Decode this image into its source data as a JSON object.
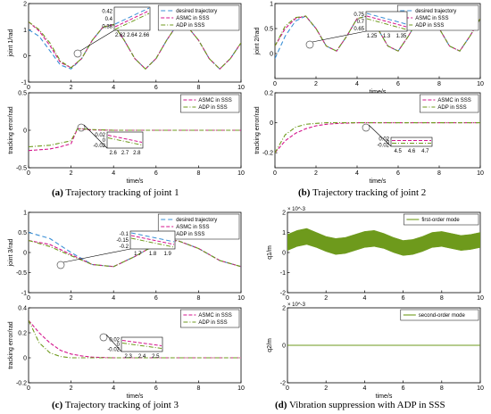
{
  "colors": {
    "desired": "#3a8fd6",
    "asmc": "#d4148c",
    "adp": "#6e9a1c",
    "axis": "#000000",
    "circle": "#555555"
  },
  "captions": [
    {
      "label": "(a)",
      "text": " Trajectory tracking of joint 1"
    },
    {
      "label": "(b)",
      "text": " Trajectory tracking of joint 2"
    },
    {
      "label": "(c)",
      "text": " Trajectory tracking of joint 3"
    },
    {
      "label": "(d)",
      "text": " Vibration suppression with ADP in SSS"
    }
  ],
  "chart_data": [
    {
      "type": "line",
      "panel": "a-top",
      "ylabel": "joint 1/rad",
      "xlim": [
        0,
        10
      ],
      "ylim": [
        -1,
        2
      ],
      "xticks": [
        "0",
        "2",
        "4",
        "6",
        "8",
        "10"
      ],
      "yticks": [
        "-1",
        "0",
        "1",
        "2"
      ],
      "legend": [
        "desired trajectory",
        "ASMC in SSS",
        "ADP in SSS"
      ],
      "legend_position": "top-right",
      "series": [
        {
          "name": "desired trajectory",
          "x": [
            0,
            0.5,
            1,
            1.5,
            2,
            2.5,
            3,
            3.5,
            4,
            4.5,
            5,
            5.5,
            6,
            6.5,
            7,
            7.5,
            8,
            8.5,
            9,
            9.5,
            10
          ],
          "y": [
            1,
            0.75,
            0.2,
            -0.35,
            -0.5,
            -0.1,
            0.6,
            1.1,
            1.2,
            0.6,
            -0.1,
            -0.5,
            -0.1,
            0.6,
            1.2,
            1.1,
            0.6,
            -0.1,
            -0.5,
            -0.1,
            0.5
          ]
        },
        {
          "name": "ASMC in SSS",
          "x": [
            0,
            0.5,
            1,
            1.5,
            2,
            2.5,
            3,
            3.5,
            4,
            4.5,
            5,
            5.5,
            6,
            6.5,
            7,
            7.5,
            8,
            8.5,
            9,
            9.5,
            10
          ],
          "y": [
            1.3,
            0.95,
            0.4,
            -0.25,
            -0.45,
            -0.1,
            0.6,
            1.1,
            1.2,
            0.6,
            -0.1,
            -0.5,
            -0.1,
            0.6,
            1.2,
            1.1,
            0.6,
            -0.1,
            -0.5,
            -0.1,
            0.5
          ]
        },
        {
          "name": "ADP in SSS",
          "x": [
            0,
            0.5,
            1,
            1.5,
            2,
            2.5,
            3,
            3.5,
            4,
            4.5,
            5,
            5.5,
            6,
            6.5,
            7,
            7.5,
            8,
            8.5,
            9,
            9.5,
            10
          ],
          "y": [
            1.3,
            1.0,
            0.5,
            -0.2,
            -0.45,
            -0.1,
            0.6,
            1.1,
            1.2,
            0.6,
            -0.1,
            -0.5,
            -0.1,
            0.6,
            1.2,
            1.1,
            0.6,
            -0.1,
            -0.5,
            -0.1,
            0.5
          ]
        }
      ],
      "inset": {
        "xlim": [
          2.61,
          2.67
        ],
        "ylim": [
          0.37,
          0.43
        ],
        "xticks": [
          "2.62",
          "2.64",
          "2.66"
        ],
        "yticks": [
          "0.42",
          "0.4",
          "0.38"
        ]
      }
    },
    {
      "type": "line",
      "panel": "a-bottom",
      "ylabel": "tracking error/rad",
      "xlabel": "time/s",
      "xlim": [
        0,
        10
      ],
      "ylim": [
        -0.5,
        0.5
      ],
      "xticks": [
        "0",
        "2",
        "4",
        "6",
        "8",
        "10"
      ],
      "yticks": [
        "-0.5",
        "0",
        "0.5"
      ],
      "legend": [
        "ASMC in SSS",
        "ADP in SSS"
      ],
      "legend_position": "top-right",
      "series": [
        {
          "name": "ASMC in SSS",
          "x": [
            0,
            1,
            1.5,
            2,
            2.3,
            2.5,
            2.7,
            3,
            4,
            5,
            6,
            7,
            8,
            9,
            10
          ],
          "y": [
            -0.27,
            -0.25,
            -0.22,
            -0.18,
            0.02,
            0.02,
            0.01,
            0.005,
            0,
            0,
            0,
            0,
            0,
            0,
            0
          ]
        },
        {
          "name": "ADP in SSS",
          "x": [
            0,
            1,
            1.5,
            2,
            2.3,
            2.5,
            2.7,
            3,
            4,
            5,
            6,
            7,
            8,
            9,
            10
          ],
          "y": [
            -0.22,
            -0.2,
            -0.17,
            -0.14,
            0.02,
            0.02,
            0.015,
            0.01,
            0,
            0,
            0,
            0,
            0,
            0,
            0
          ]
        }
      ],
      "inset": {
        "xlim": [
          2.55,
          2.85
        ],
        "ylim": [
          -0.03,
          0.03
        ],
        "xticks": [
          "2.6",
          "2.7",
          "2.8"
        ],
        "yticks": [
          "0.02",
          "0",
          "-0.02"
        ]
      }
    },
    {
      "type": "line",
      "panel": "b-top",
      "ylabel": "joint 2/rad",
      "xlabel": "time/s",
      "xlim": [
        0,
        10
      ],
      "ylim": [
        -0.5,
        1
      ],
      "xticks": [
        "0",
        "2",
        "4",
        "6",
        "8",
        "10"
      ],
      "yticks": [
        "0",
        "0.5",
        "1"
      ],
      "legend": [
        "desired trajectory",
        "ASMC in SSS",
        "ADP in SSS"
      ],
      "legend_position": "top-right",
      "series": [
        {
          "name": "desired trajectory",
          "x": [
            0,
            0.5,
            1,
            1.5,
            2,
            2.5,
            3,
            3.5,
            4,
            4.5,
            5,
            5.5,
            6,
            6.5,
            7,
            7.5,
            8,
            8.5,
            9,
            9.5,
            10
          ],
          "y": [
            -0.1,
            0.35,
            0.65,
            0.75,
            0.5,
            0.15,
            0.05,
            0.35,
            0.7,
            0.75,
            0.5,
            0.15,
            0.05,
            0.35,
            0.7,
            0.75,
            0.5,
            0.15,
            0.05,
            0.35,
            0.7
          ]
        },
        {
          "name": "ASMC in SSS",
          "x": [
            0,
            0.5,
            1,
            1.5,
            2,
            2.5,
            3,
            3.5,
            4,
            4.5,
            5,
            5.5,
            6,
            6.5,
            7,
            7.5,
            8,
            8.5,
            9,
            9.5,
            10
          ],
          "y": [
            0.15,
            0.5,
            0.7,
            0.75,
            0.5,
            0.15,
            0.05,
            0.35,
            0.7,
            0.75,
            0.5,
            0.15,
            0.05,
            0.35,
            0.7,
            0.75,
            0.5,
            0.15,
            0.05,
            0.35,
            0.7
          ]
        },
        {
          "name": "ADP in SSS",
          "x": [
            0,
            0.5,
            1,
            1.5,
            2,
            2.5,
            3,
            3.5,
            4,
            4.5,
            5,
            5.5,
            6,
            6.5,
            7,
            7.5,
            8,
            8.5,
            9,
            9.5,
            10
          ],
          "y": [
            0.15,
            0.55,
            0.72,
            0.75,
            0.5,
            0.15,
            0.05,
            0.35,
            0.7,
            0.75,
            0.5,
            0.15,
            0.05,
            0.35,
            0.7,
            0.75,
            0.5,
            0.15,
            0.05,
            0.35,
            0.7
          ]
        }
      ],
      "inset": {
        "xlim": [
          1.23,
          1.37
        ],
        "ylim": [
          0.63,
          0.77
        ],
        "xticks": [
          "1.25",
          "1.3",
          "1.35"
        ],
        "yticks": [
          "0.75",
          "0.7",
          "0.65"
        ]
      }
    },
    {
      "type": "line",
      "panel": "b-bottom",
      "ylabel": "tracking error/rad",
      "xlabel": "time/s",
      "xlim": [
        0,
        10
      ],
      "ylim": [
        -0.3,
        0.2
      ],
      "xticks": [
        "0",
        "2",
        "4",
        "6",
        "8",
        "10"
      ],
      "yticks": [
        "-0.2",
        "0",
        "0.2"
      ],
      "legend": [
        "ASMC in SSS",
        "ADP in SSS"
      ],
      "legend_position": "top-right",
      "series": [
        {
          "name": "ASMC in SSS",
          "x": [
            0,
            0.5,
            1,
            1.5,
            2,
            2.5,
            3,
            4,
            5,
            6,
            7,
            8,
            9,
            10
          ],
          "y": [
            -0.2,
            -0.12,
            -0.07,
            -0.04,
            -0.02,
            -0.01,
            -0.005,
            0,
            0,
            0,
            0,
            0,
            0,
            0
          ]
        },
        {
          "name": "ADP in SSS",
          "x": [
            0,
            0.5,
            1,
            1.5,
            2,
            2.5,
            3,
            4,
            5,
            6,
            7,
            8,
            9,
            10
          ],
          "y": [
            -0.2,
            -0.08,
            -0.03,
            -0.01,
            -0.004,
            0,
            0,
            0,
            0,
            0,
            0,
            0,
            0,
            0
          ]
        }
      ],
      "inset": {
        "xlim": [
          4.45,
          4.75
        ],
        "ylim": [
          -0.03,
          0.03
        ],
        "xticks": [
          "4.5",
          "4.6",
          "4.7"
        ],
        "yticks": [
          "0.02",
          "0",
          "-0.02"
        ]
      }
    },
    {
      "type": "line",
      "panel": "c-top",
      "ylabel": "joint 3/rad",
      "xlim": [
        0,
        10
      ],
      "ylim": [
        -1,
        1
      ],
      "xticks": [
        "0",
        "2",
        "4",
        "6",
        "8",
        "10"
      ],
      "yticks": [
        "-1",
        "-0.5",
        "0",
        "0.5",
        "1"
      ],
      "legend": [
        "desired trajectory",
        "ASMC in SSS",
        "ADP in SSS"
      ],
      "legend_position": "top-right",
      "series": [
        {
          "name": "desired trajectory",
          "x": [
            0,
            1,
            2,
            3,
            4,
            5,
            6,
            7,
            8,
            9,
            10
          ],
          "y": [
            0.5,
            0.35,
            0.0,
            -0.3,
            -0.35,
            -0.1,
            0.2,
            0.3,
            0.1,
            -0.2,
            -0.35
          ]
        },
        {
          "name": "ASMC in SSS",
          "x": [
            0,
            1,
            2,
            3,
            4,
            5,
            6,
            7,
            8,
            9,
            10
          ],
          "y": [
            0.3,
            0.2,
            -0.05,
            -0.3,
            -0.35,
            -0.1,
            0.2,
            0.3,
            0.1,
            -0.2,
            -0.35
          ]
        },
        {
          "name": "ADP in SSS",
          "x": [
            0,
            1,
            2,
            3,
            4,
            5,
            6,
            7,
            8,
            9,
            10
          ],
          "y": [
            0.3,
            0.15,
            -0.08,
            -0.3,
            -0.35,
            -0.1,
            0.2,
            0.3,
            0.1,
            -0.2,
            -0.35
          ]
        }
      ],
      "inset": {
        "xlim": [
          1.65,
          1.95
        ],
        "ylim": [
          -0.22,
          -0.08
        ],
        "xticks": [
          "1.7",
          "1.8",
          "1.9"
        ],
        "yticks": [
          "-0.1",
          "-0.15",
          "-0.2"
        ]
      }
    },
    {
      "type": "line",
      "panel": "c-bottom",
      "ylabel": "tracking error/rad",
      "xlabel": "time/s",
      "xlim": [
        0,
        10
      ],
      "ylim": [
        -0.2,
        0.4
      ],
      "xticks": [
        "0",
        "2",
        "4",
        "6",
        "8",
        "10"
      ],
      "yticks": [
        "-0.2",
        "0",
        "0.2",
        "0.4"
      ],
      "legend": [
        "ASMC in SSS",
        "ADP in SSS"
      ],
      "legend_position": "top-right",
      "series": [
        {
          "name": "ASMC in SSS",
          "x": [
            0,
            0.5,
            1,
            1.5,
            2,
            2.5,
            3,
            4,
            5,
            6,
            7,
            8,
            9,
            10
          ],
          "y": [
            0.3,
            0.2,
            0.12,
            0.06,
            0.03,
            0.015,
            0.005,
            0,
            0,
            0,
            0,
            0,
            0,
            0
          ]
        },
        {
          "name": "ADP in SSS",
          "x": [
            0,
            0.5,
            1,
            1.5,
            2,
            2.5,
            3,
            4,
            5,
            6,
            7,
            8,
            9,
            10
          ],
          "y": [
            0.3,
            0.12,
            0.04,
            0.01,
            0,
            0,
            0,
            0,
            0,
            0,
            0,
            0,
            0,
            0
          ]
        }
      ],
      "inset": {
        "xlim": [
          2.25,
          2.55
        ],
        "ylim": [
          -0.03,
          0.03
        ],
        "xticks": [
          "2.3",
          "2.4",
          "2.5"
        ],
        "yticks": [
          "0.02",
          "0",
          "-0.02"
        ]
      }
    },
    {
      "type": "area",
      "panel": "d-top",
      "ylabel": "q1/m",
      "xlim": [
        0,
        10
      ],
      "ylim": [
        -2,
        2
      ],
      "multiplier": "× 10^-3",
      "xticks": [
        "0",
        "2",
        "4",
        "6",
        "8",
        "10"
      ],
      "yticks": [
        "-2",
        "-1",
        "0",
        "1",
        "2"
      ],
      "legend": [
        "first-order mode"
      ],
      "legend_position": "top-right",
      "series": [
        {
          "name": "first-order mode",
          "x": [
            0,
            0.5,
            1,
            1.5,
            2,
            2.5,
            3,
            3.5,
            4,
            4.5,
            5,
            5.5,
            6,
            6.5,
            7,
            7.5,
            8,
            8.5,
            9,
            9.5,
            10
          ],
          "upper": [
            0.9,
            1.1,
            1.2,
            1.0,
            0.8,
            0.7,
            0.75,
            0.9,
            1.05,
            1.1,
            0.95,
            0.75,
            0.6,
            0.65,
            0.8,
            1.0,
            1.05,
            0.95,
            0.85,
            0.9,
            1.0
          ],
          "lower": [
            0.1,
            0.3,
            0.4,
            0.25,
            0.05,
            -0.1,
            -0.05,
            0.1,
            0.25,
            0.3,
            0.2,
            0.0,
            -0.15,
            -0.1,
            0.05,
            0.25,
            0.3,
            0.2,
            0.1,
            0.15,
            0.25
          ]
        }
      ]
    },
    {
      "type": "line",
      "panel": "d-bottom",
      "ylabel": "q2/m",
      "xlabel": "time/s",
      "xlim": [
        0,
        10
      ],
      "ylim": [
        -2,
        2
      ],
      "multiplier": "× 10^-3",
      "xticks": [
        "0",
        "2",
        "4",
        "6",
        "8",
        "10"
      ],
      "yticks": [
        "-2",
        "0",
        "2"
      ],
      "legend": [
        "second-order mode"
      ],
      "legend_position": "top-right",
      "series": [
        {
          "name": "second-order mode",
          "x": [
            0,
            10
          ],
          "y": [
            0,
            0
          ]
        }
      ]
    }
  ]
}
